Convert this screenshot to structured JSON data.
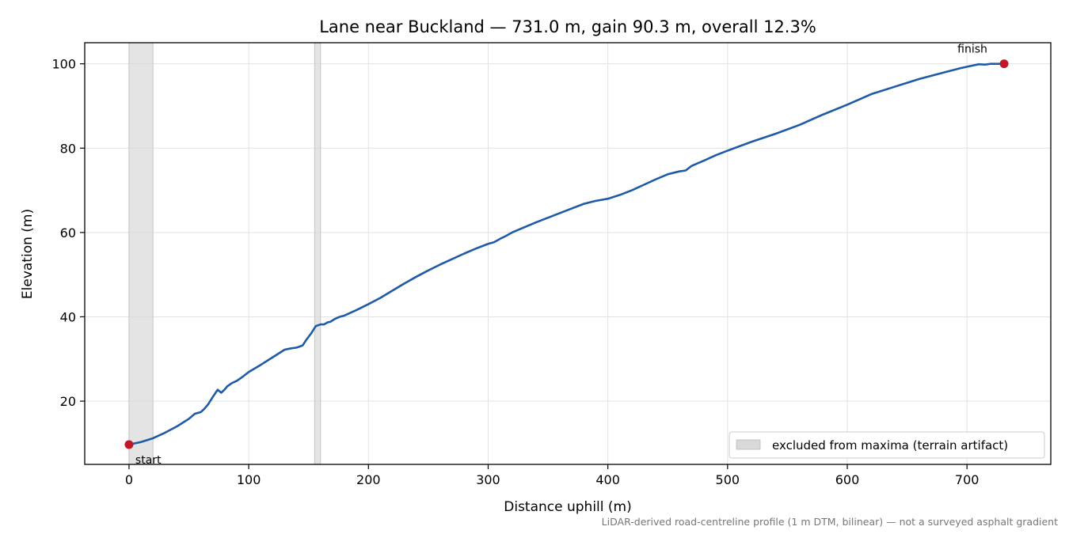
{
  "chart_data": {
    "type": "line",
    "title": "Lane near Buckland — 731.0 m, gain 90.3 m, overall 12.3%",
    "xlabel": "Distance uphill (m)",
    "ylabel": "Elevation (m)",
    "xlim": [
      -37,
      770
    ],
    "ylim": [
      5,
      105
    ],
    "x_ticks": [
      0,
      100,
      200,
      300,
      400,
      500,
      600,
      700
    ],
    "y_ticks": [
      20,
      40,
      60,
      80,
      100
    ],
    "grid": true,
    "line_color": "#1f5aa6",
    "marker_color": "#c0182a",
    "band_color": "#d9d9d9",
    "series": [
      {
        "x": [
          0,
          10,
          20,
          30,
          40,
          50,
          55,
          60,
          63,
          66,
          70,
          74,
          77,
          80,
          82,
          86,
          90,
          95,
          100,
          110,
          120,
          130,
          135,
          140,
          145,
          148,
          152,
          156,
          160,
          163,
          166,
          168,
          172,
          176,
          180,
          190,
          200,
          210,
          220,
          230,
          240,
          250,
          260,
          270,
          280,
          290,
          300,
          305,
          310,
          315,
          320,
          330,
          340,
          350,
          360,
          370,
          380,
          390,
          400,
          410,
          420,
          430,
          440,
          450,
          460,
          465,
          470,
          480,
          490,
          500,
          520,
          540,
          560,
          580,
          600,
          620,
          640,
          660,
          680,
          695,
          705,
          710,
          715,
          720,
          731
        ],
        "y": [
          9.7,
          10.3,
          11.2,
          12.5,
          14.0,
          15.8,
          17.0,
          17.4,
          18.2,
          19.2,
          21.0,
          22.7,
          22.0,
          22.8,
          23.5,
          24.3,
          24.8,
          25.8,
          26.9,
          28.6,
          30.4,
          32.2,
          32.5,
          32.7,
          33.2,
          34.5,
          36.0,
          37.8,
          38.2,
          38.2,
          38.7,
          38.8,
          39.5,
          40.0,
          40.3,
          41.6,
          43.0,
          44.5,
          46.2,
          47.9,
          49.5,
          51.0,
          52.4,
          53.7,
          55.0,
          56.2,
          57.3,
          57.7,
          58.5,
          59.2,
          60.0,
          61.2,
          62.4,
          63.5,
          64.6,
          65.7,
          66.8,
          67.5,
          68.0,
          68.9,
          70.0,
          71.3,
          72.6,
          73.8,
          74.5,
          74.7,
          75.8,
          77.0,
          78.3,
          79.4,
          81.5,
          83.4,
          85.5,
          88.0,
          90.3,
          92.8,
          94.6,
          96.4,
          97.9,
          99.0,
          99.6,
          99.9,
          99.8,
          100.0,
          100.0
        ]
      }
    ],
    "excluded_ranges": [
      [
        0,
        20
      ],
      [
        155,
        160
      ]
    ],
    "points": [
      {
        "label": "start",
        "x": 0,
        "y": 9.7
      },
      {
        "label": "finish",
        "x": 731,
        "y": 100.0
      }
    ],
    "legend": {
      "location": "lower-right",
      "entries": [
        "excluded from maxima (terrain artifact)"
      ]
    },
    "footnote": "LiDAR-derived road-centreline profile (1 m DTM, bilinear) — not a surveyed asphalt gradient"
  }
}
